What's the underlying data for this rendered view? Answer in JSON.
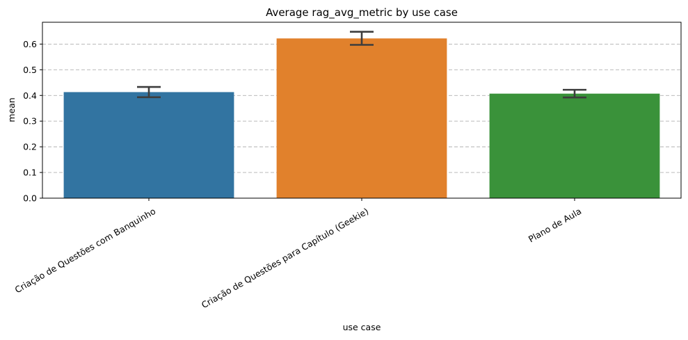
{
  "chart_data": {
    "type": "bar",
    "title": "Average rag_avg_metric by use case",
    "xlabel": "use case",
    "ylabel": "mean",
    "ylim": [
      0,
      0.685
    ],
    "yticks": [
      "0.0",
      "0.1",
      "0.2",
      "0.3",
      "0.4",
      "0.5",
      "0.6"
    ],
    "ytick_values": [
      0,
      0.1,
      0.2,
      0.3,
      0.4,
      0.5,
      0.6
    ],
    "grid": "y, dashed",
    "categories": [
      "Criação de Questões com Banquinho",
      "Criação de Questões para Capítulo (Geekie)",
      "Plano de Aula"
    ],
    "values": [
      0.413,
      0.622,
      0.407
    ],
    "error_low": [
      0.393,
      0.597,
      0.392
    ],
    "error_high": [
      0.433,
      0.648,
      0.422
    ],
    "colors": [
      "#3274a1",
      "#e1812c",
      "#3a923a"
    ]
  }
}
